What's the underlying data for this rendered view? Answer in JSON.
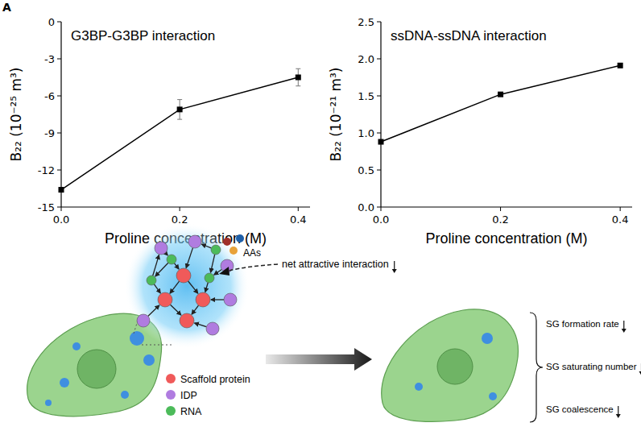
{
  "figure": {
    "panel_label": "A"
  },
  "chart_data": [
    {
      "type": "line",
      "title": "G3BP-G3BP interaction",
      "x_label": "Proline concentration (M)",
      "y_label": "B₂₂ (10⁻²⁵ m³)",
      "x": [
        0,
        0.2,
        0.4
      ],
      "values": [
        -13.6,
        -7.1,
        -4.5
      ],
      "errors": [
        0.1,
        0.8,
        0.7
      ],
      "color": "#000000",
      "marker": "square",
      "line_style": "solid",
      "xlim": [
        0,
        0.42
      ],
      "xticks": [
        {
          "value": 0,
          "label": "0.0"
        },
        0.2,
        0.4
      ],
      "ylim": [
        -15,
        0
      ],
      "yticks": [
        -15,
        -12,
        -9,
        -6,
        -3,
        0
      ]
    },
    {
      "type": "line",
      "title": "ssDNA-ssDNA interaction",
      "x_label": "Proline concentration (M)",
      "y_label": "B₂₂ (10⁻²¹ m³)",
      "x": [
        0,
        0.2,
        0.4
      ],
      "values": [
        0.88,
        1.52,
        1.91
      ],
      "errors": [
        0.01,
        0.01,
        0.03
      ],
      "color": "#000000",
      "marker": "square",
      "line_style": "solid",
      "xlim": [
        0,
        0.42
      ],
      "xticks": [
        {
          "value": 0,
          "label": "0.0"
        },
        0.2,
        0.4
      ],
      "ylim": [
        0,
        2.5
      ],
      "yticks": [
        {
          "value": 0,
          "label": "0.0"
        },
        0.5,
        {
          "value": 1,
          "label": "1.0"
        },
        1.5,
        {
          "value": 2,
          "label": "2.0"
        },
        2.5
      ]
    }
  ],
  "diagram": {
    "legend": [
      {
        "label": "Scaffold protein",
        "color": "#f05a5a"
      },
      {
        "label": "IDP",
        "color": "#b07ce0"
      },
      {
        "label": "RNA",
        "color": "#4cbb5a"
      }
    ],
    "aas_label": "AAs",
    "effect_label": "net attractive interaction",
    "outcomes": [
      "SG formation rate",
      "SG saturating number",
      "SG coalescence"
    ]
  }
}
